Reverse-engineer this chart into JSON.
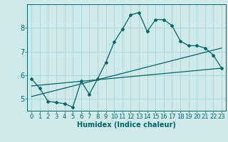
{
  "xlabel": "Humidex (Indice chaleur)",
  "bg_color": "#ceeaea",
  "line_color": "#006666",
  "grid_color": "#aad4d4",
  "x_ticks": [
    0,
    1,
    2,
    3,
    4,
    5,
    6,
    7,
    8,
    9,
    10,
    11,
    12,
    13,
    14,
    15,
    16,
    17,
    18,
    19,
    20,
    21,
    22,
    23
  ],
  "y_ticks": [
    5,
    6,
    7,
    8
  ],
  "xlim": [
    -0.5,
    23.5
  ],
  "ylim": [
    4.5,
    9.0
  ],
  "line1_x": [
    0,
    1,
    2,
    3,
    4,
    5,
    6,
    7,
    8,
    9,
    10,
    11,
    12,
    13,
    14,
    15,
    16,
    17,
    18,
    19,
    20,
    21,
    22,
    23
  ],
  "line1_y": [
    5.85,
    5.45,
    4.9,
    4.85,
    4.8,
    4.65,
    5.75,
    5.2,
    5.85,
    6.55,
    7.4,
    7.95,
    8.55,
    8.65,
    7.85,
    8.35,
    8.35,
    8.1,
    7.45,
    7.25,
    7.25,
    7.15,
    6.85,
    6.3
  ],
  "line2_x": [
    0,
    23
  ],
  "line2_y": [
    5.55,
    6.3
  ],
  "line3_x": [
    0,
    23
  ],
  "line3_y": [
    5.1,
    7.15
  ],
  "tick_fontsize": 6,
  "xlabel_fontsize": 7
}
